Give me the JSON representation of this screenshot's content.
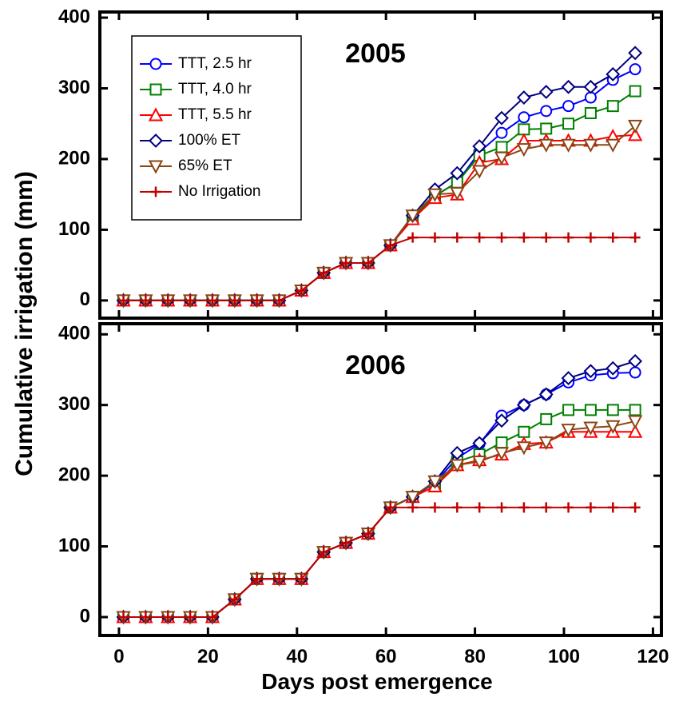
{
  "ylabel": "Cumulative irrigation (mm)",
  "xlabel": "Days post emergence",
  "chart_data": [
    {
      "type": "line",
      "title": "2005",
      "legend": "upper left",
      "x": [
        1,
        6,
        11,
        16,
        21,
        26,
        31,
        36,
        41,
        46,
        51,
        56,
        61,
        66,
        71,
        76,
        81,
        86,
        91,
        96,
        101,
        106,
        111,
        116
      ],
      "xlim": [
        -4.3,
        121.9
      ],
      "xticks": [
        0,
        20,
        40,
        60,
        80,
        100,
        120
      ],
      "ylim": [
        -25,
        408
      ],
      "yticks": [
        0,
        100,
        200,
        300,
        400
      ],
      "series": [
        {
          "name": "TTT, 2.5 hr",
          "color": "#0000ff",
          "marker": "circle",
          "values": [
            0,
            0,
            0,
            0,
            0,
            0,
            0,
            0,
            14,
            39,
            53,
            53,
            78,
            117,
            148,
            167,
            210,
            237,
            259,
            268,
            275,
            287,
            312,
            327
          ]
        },
        {
          "name": "TTT, 4.0 hr",
          "color": "#008000",
          "marker": "square",
          "values": [
            0,
            0,
            0,
            0,
            0,
            0,
            0,
            0,
            14,
            39,
            53,
            53,
            78,
            117,
            148,
            167,
            205,
            217,
            242,
            243,
            250,
            265,
            275,
            296
          ]
        },
        {
          "name": "TTT, 5.5 hr",
          "color": "#ff0000",
          "marker": "triangle-up",
          "values": [
            0,
            0,
            0,
            0,
            0,
            0,
            0,
            0,
            14,
            39,
            53,
            53,
            78,
            115,
            145,
            150,
            195,
            200,
            226,
            226,
            226,
            226,
            232,
            234
          ]
        },
        {
          "name": "100% ET",
          "color": "#000080",
          "marker": "diamond",
          "values": [
            0,
            0,
            0,
            0,
            0,
            0,
            0,
            0,
            14,
            39,
            53,
            53,
            78,
            120,
            157,
            180,
            218,
            258,
            287,
            295,
            302,
            302,
            320,
            350
          ]
        },
        {
          "name": "65% ET",
          "color": "#8b4513",
          "marker": "triangle-down",
          "values": [
            0,
            0,
            0,
            0,
            0,
            0,
            0,
            0,
            14,
            39,
            53,
            53,
            78,
            120,
            150,
            152,
            183,
            202,
            214,
            220,
            220,
            220,
            220,
            247
          ]
        },
        {
          "name": "No Irrigation",
          "color": "#c00000",
          "marker": "plus",
          "values": [
            0,
            0,
            0,
            0,
            0,
            0,
            0,
            0,
            14,
            39,
            53,
            53,
            78,
            89,
            89,
            89,
            89,
            89,
            89,
            89,
            89,
            89,
            89,
            89
          ]
        }
      ]
    },
    {
      "type": "line",
      "title": "2006",
      "x": [
        1,
        6,
        11,
        16,
        21,
        26,
        31,
        36,
        41,
        46,
        51,
        56,
        61,
        66,
        71,
        76,
        81,
        86,
        91,
        96,
        101,
        106,
        111,
        116
      ],
      "xlim": [
        -4.3,
        121.9
      ],
      "xticks": [
        0,
        20,
        40,
        60,
        80,
        100,
        120
      ],
      "ylim": [
        -26,
        415
      ],
      "yticks": [
        0,
        100,
        200,
        300,
        400
      ],
      "series": [
        {
          "color": "#0000ff",
          "marker": "circle",
          "values": [
            0,
            0,
            0,
            0,
            0,
            25,
            54,
            54,
            54,
            92,
            105,
            118,
            155,
            170,
            190,
            225,
            245,
            285,
            300,
            315,
            332,
            342,
            345,
            346
          ]
        },
        {
          "color": "#008000",
          "marker": "square",
          "values": [
            0,
            0,
            0,
            0,
            0,
            25,
            54,
            54,
            54,
            92,
            105,
            118,
            155,
            170,
            185,
            220,
            230,
            247,
            262,
            280,
            293,
            293,
            293,
            293
          ]
        },
        {
          "color": "#ff0000",
          "marker": "triangle-up",
          "values": [
            0,
            0,
            0,
            0,
            0,
            25,
            54,
            54,
            54,
            92,
            105,
            118,
            155,
            170,
            185,
            215,
            222,
            230,
            245,
            247,
            262,
            262,
            262,
            262
          ]
        },
        {
          "color": "#000080",
          "marker": "diamond",
          "values": [
            0,
            0,
            0,
            0,
            0,
            25,
            54,
            54,
            54,
            92,
            105,
            118,
            155,
            170,
            192,
            232,
            246,
            278,
            300,
            315,
            338,
            348,
            352,
            362
          ]
        },
        {
          "color": "#8b4513",
          "marker": "triangle-down",
          "values": [
            0,
            0,
            0,
            0,
            0,
            25,
            54,
            54,
            54,
            92,
            105,
            118,
            155,
            170,
            192,
            215,
            220,
            232,
            240,
            247,
            265,
            268,
            270,
            277
          ]
        },
        {
          "color": "#c00000",
          "marker": "plus",
          "values": [
            0,
            0,
            0,
            0,
            0,
            25,
            54,
            54,
            54,
            92,
            105,
            118,
            155,
            155,
            155,
            155,
            155,
            155,
            155,
            155,
            155,
            155,
            155,
            155
          ]
        }
      ]
    }
  ]
}
